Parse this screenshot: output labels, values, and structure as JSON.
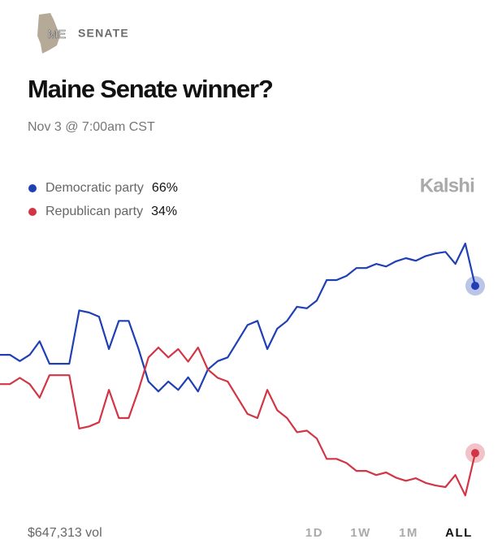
{
  "header": {
    "state": "ME",
    "section": "SENATE"
  },
  "brand": "Kalshi",
  "chart_data": {
    "type": "line",
    "title": "Maine Senate winner?",
    "subtitle": "Nov 3 @ 7:00am CST",
    "ylim": [
      24.4,
      77.2
    ],
    "series": [
      {
        "name": "Democratic party",
        "color": "#1f3fb4",
        "current": {
          "value": 66,
          "label": "66%"
        },
        "values": [
          52.8,
          52.8,
          51.6,
          52.8,
          55.4,
          51.1,
          51.1,
          51.1,
          61.3,
          60.9,
          60.1,
          53.9,
          59.3,
          59.3,
          53.9,
          47.7,
          45.8,
          47.7,
          46.1,
          48.5,
          45.8,
          50,
          51.6,
          52.3,
          55.4,
          58.5,
          59.3,
          53.9,
          57.8,
          59.3,
          62,
          61.7,
          63.2,
          67.1,
          67.1,
          67.9,
          69.4,
          69.4,
          70.2,
          69.7,
          70.7,
          71.3,
          70.8,
          71.7,
          72.2,
          72.5,
          70.2,
          74.1,
          66
        ]
      },
      {
        "name": "Republican party",
        "color": "#d23545",
        "current": {
          "value": 34,
          "label": "34%"
        },
        "values": [
          47.2,
          47.2,
          48.4,
          47.2,
          44.6,
          48.9,
          48.9,
          48.9,
          38.7,
          39.1,
          39.9,
          46.1,
          40.7,
          40.7,
          46.1,
          52.3,
          54.2,
          52.3,
          53.9,
          51.5,
          54.2,
          50,
          48.4,
          47.7,
          44.6,
          41.5,
          40.7,
          46.1,
          42.2,
          40.7,
          38,
          38.3,
          36.8,
          32.9,
          32.9,
          32.1,
          30.6,
          30.6,
          29.8,
          30.3,
          29.3,
          28.7,
          29.2,
          28.3,
          27.8,
          27.5,
          29.8,
          25.9,
          34
        ]
      }
    ]
  },
  "footer": {
    "volume": "$647,313 vol",
    "ranges": [
      "1D",
      "1W",
      "1M",
      "ALL"
    ],
    "active_range": 3
  }
}
